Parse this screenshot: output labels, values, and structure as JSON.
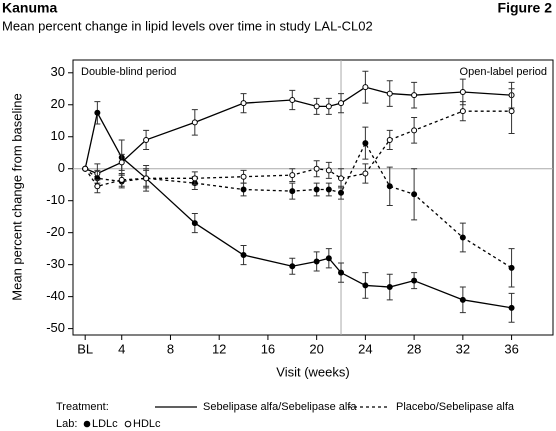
{
  "header": {
    "brand": "Kanuma",
    "figure": "Figure 2"
  },
  "chart_data": {
    "type": "line",
    "title": "Mean percent change in lipid levels over time in study LAL-CL02",
    "x_label": "Visit (weeks)",
    "y_label": "Mean percent change from baseline",
    "x": [
      1,
      2,
      4,
      6,
      10,
      14,
      18,
      20,
      21,
      22,
      24,
      26,
      28,
      32,
      36
    ],
    "xlim": [
      0,
      39.4
    ],
    "xticks": [
      {
        "value": 1,
        "label": "BL"
      },
      4,
      8,
      12,
      16,
      20,
      24,
      28,
      32,
      36
    ],
    "ylim": [
      -52,
      34
    ],
    "yticks": [
      -50,
      -40,
      -30,
      -20,
      -10,
      0,
      10,
      20,
      30
    ],
    "reference_x": 22,
    "annotations": [
      "Double-blind period",
      "Open-label period"
    ],
    "series": [
      {
        "line": "solid",
        "marker": "filled",
        "color": "#000000",
        "values": [
          0,
          17.5,
          3.5,
          -3,
          -17,
          -27,
          -30.5,
          -29,
          -28,
          -32.5,
          -36.5,
          -37,
          -35,
          -41,
          -43.5
        ],
        "errors": [
          0,
          3.5,
          5.5,
          4,
          3,
          3,
          2.5,
          3,
          3,
          3,
          4,
          4,
          2.5,
          4,
          4.5
        ]
      },
      {
        "line": "solid",
        "marker": "open",
        "color": "#000000",
        "values": [
          0,
          -1.5,
          2,
          9,
          14.5,
          20.5,
          21.5,
          19.5,
          19.5,
          20.5,
          25.5,
          23.5,
          23,
          24,
          23
        ],
        "errors": [
          0,
          3,
          2.5,
          3,
          4,
          3,
          3,
          2.5,
          2.5,
          3,
          5,
          4,
          4,
          4,
          4
        ]
      },
      {
        "line": "dotted",
        "marker": "filled",
        "color": "#000000",
        "values": [
          0,
          -3,
          -4,
          -3,
          -4.5,
          -6.5,
          -7,
          -6.5,
          -6.5,
          -7.5,
          8,
          -5.5,
          -8,
          -21.5,
          -31
        ],
        "errors": [
          0,
          2.5,
          2,
          3,
          2,
          2,
          2.5,
          2,
          2,
          2,
          5,
          6,
          8,
          4.5,
          6
        ]
      },
      {
        "line": "dotted",
        "marker": "open",
        "color": "#000000",
        "values": [
          0,
          -5.5,
          -3.5,
          -3,
          -3,
          -2.5,
          -2,
          0,
          -0.5,
          -3,
          -1.5,
          9,
          12,
          18,
          18
        ],
        "errors": [
          0,
          2,
          2,
          2.5,
          2,
          2,
          2,
          2.5,
          2.5,
          3,
          3,
          3,
          4,
          3,
          7
        ]
      }
    ],
    "legend": {
      "treatment_label": "Treatment:",
      "treatments": [
        {
          "name": "Sebelipase alfa/Sebelipase alfa",
          "line": "solid"
        },
        {
          "name": "Placebo/Sebelipase alfa",
          "line": "dotted"
        }
      ],
      "lab_label": "Lab:",
      "labs": [
        {
          "name": "LDLc",
          "marker": "filled"
        },
        {
          "name": "HDLc",
          "marker": "open"
        }
      ]
    }
  }
}
